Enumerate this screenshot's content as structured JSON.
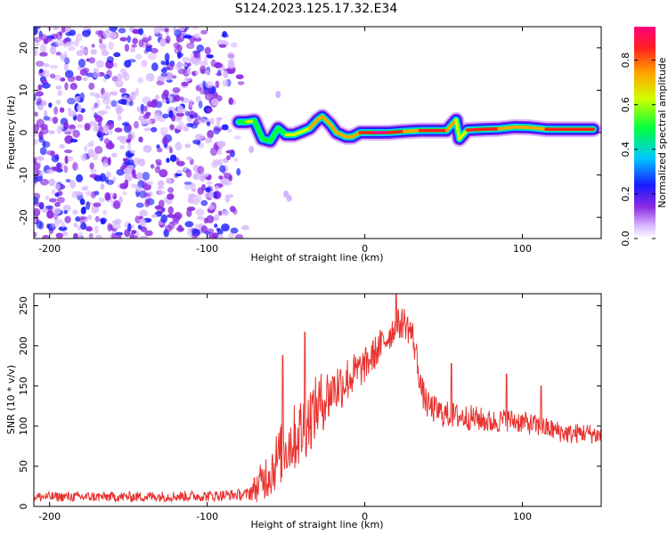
{
  "title": "S124.2023.125.17.32.E34",
  "colors": {
    "snr_line": "#e8332f",
    "spec_low": "#9b4dff",
    "spec_mid": "#00c8ff",
    "spec_high": "#e8332f",
    "axis": "#000000"
  },
  "chart_data": [
    {
      "type": "heatmap",
      "name": "spectrogram",
      "xlabel": "Height of straight line (km)",
      "ylabel": "Frequency (Hz)",
      "xlim": [
        -210,
        150
      ],
      "ylim": [
        -25,
        25
      ],
      "xticks": [
        -200,
        -100,
        0,
        100
      ],
      "yticks": [
        20,
        10,
        0,
        -10,
        -20
      ],
      "noise_region_x": [
        -210,
        -75
      ],
      "ridge": [
        {
          "x": -80,
          "y": 2.5,
          "a": 0.45
        },
        {
          "x": -75,
          "y": 2.5,
          "a": 0.5
        },
        {
          "x": -70,
          "y": 2.8,
          "a": 0.55
        },
        {
          "x": -65,
          "y": -1.5,
          "a": 0.4
        },
        {
          "x": -60,
          "y": -2.0,
          "a": 0.45
        },
        {
          "x": -55,
          "y": 1.0,
          "a": 0.5
        },
        {
          "x": -50,
          "y": -0.5,
          "a": 0.45
        },
        {
          "x": -45,
          "y": -0.5,
          "a": 0.6
        },
        {
          "x": -40,
          "y": 0.2,
          "a": 0.6
        },
        {
          "x": -35,
          "y": 1.0,
          "a": 0.7
        },
        {
          "x": -30,
          "y": 3.0,
          "a": 0.75
        },
        {
          "x": -27,
          "y": 3.8,
          "a": 0.8
        },
        {
          "x": -22,
          "y": 2.0,
          "a": 0.75
        },
        {
          "x": -18,
          "y": 0.0,
          "a": 0.7
        },
        {
          "x": -12,
          "y": -1.0,
          "a": 0.7
        },
        {
          "x": -8,
          "y": -1.0,
          "a": 0.65
        },
        {
          "x": -3,
          "y": 0.0,
          "a": 0.75
        },
        {
          "x": 5,
          "y": 0.0,
          "a": 0.95
        },
        {
          "x": 15,
          "y": 0.0,
          "a": 0.95
        },
        {
          "x": 25,
          "y": 0.3,
          "a": 0.75
        },
        {
          "x": 35,
          "y": 0.5,
          "a": 0.8
        },
        {
          "x": 45,
          "y": 0.5,
          "a": 0.85
        },
        {
          "x": 52,
          "y": 0.5,
          "a": 0.8
        },
        {
          "x": 58,
          "y": 3.0,
          "a": 0.55
        },
        {
          "x": 60,
          "y": -1.5,
          "a": 0.5
        },
        {
          "x": 65,
          "y": 0.6,
          "a": 0.75
        },
        {
          "x": 75,
          "y": 0.8,
          "a": 0.85
        },
        {
          "x": 85,
          "y": 0.9,
          "a": 0.8
        },
        {
          "x": 95,
          "y": 1.3,
          "a": 0.65
        },
        {
          "x": 105,
          "y": 1.2,
          "a": 0.7
        },
        {
          "x": 115,
          "y": 0.8,
          "a": 0.85
        },
        {
          "x": 125,
          "y": 0.8,
          "a": 0.9
        },
        {
          "x": 135,
          "y": 0.8,
          "a": 0.9
        },
        {
          "x": 145,
          "y": 0.8,
          "a": 0.9
        }
      ],
      "reference_line": {
        "x": [
          58,
          150
        ],
        "y": 1.5
      },
      "colorbar": {
        "label": "Normalized spectral amplitude",
        "range": [
          0.0,
          0.95
        ],
        "ticks": [
          "0.0",
          "0.2",
          "0.4",
          "0.6",
          "0.8"
        ]
      }
    },
    {
      "type": "line",
      "name": "snr",
      "xlabel": "Height of straight line (km)",
      "ylabel": "SNR (10 * v/v)",
      "xlim": [
        -210,
        150
      ],
      "ylim": [
        0,
        265
      ],
      "xticks": [
        -200,
        -100,
        0,
        100
      ],
      "yticks": [
        0,
        50,
        100,
        150,
        200,
        250
      ],
      "envelope": {
        "x": [
          -210,
          -150,
          -100,
          -75,
          -68,
          -60,
          -50,
          -40,
          -30,
          -20,
          -10,
          0,
          10,
          20,
          25,
          30,
          33,
          36,
          40,
          50,
          60,
          70,
          80,
          90,
          100,
          110,
          120,
          130,
          140,
          150
        ],
        "y": [
          12,
          12,
          13,
          15,
          25,
          45,
          75,
          95,
          125,
          145,
          160,
          175,
          200,
          225,
          230,
          215,
          185,
          145,
          125,
          115,
          112,
          110,
          105,
          108,
          105,
          100,
          95,
          90,
          92,
          88
        ]
      },
      "noise": {
        "x": [
          -210,
          -75,
          -60,
          -40,
          -20,
          0,
          20,
          30,
          40,
          80,
          150
        ],
        "amp": [
          6,
          7,
          35,
          45,
          35,
          22,
          20,
          20,
          18,
          15,
          12
        ]
      },
      "spikes": [
        {
          "x": -52,
          "y": 188
        },
        {
          "x": -38,
          "y": 217
        },
        {
          "x": -20,
          "y": 160
        },
        {
          "x": 20,
          "y": 265
        },
        {
          "x": 55,
          "y": 178
        },
        {
          "x": 90,
          "y": 165
        },
        {
          "x": 112,
          "y": 150
        }
      ]
    }
  ]
}
